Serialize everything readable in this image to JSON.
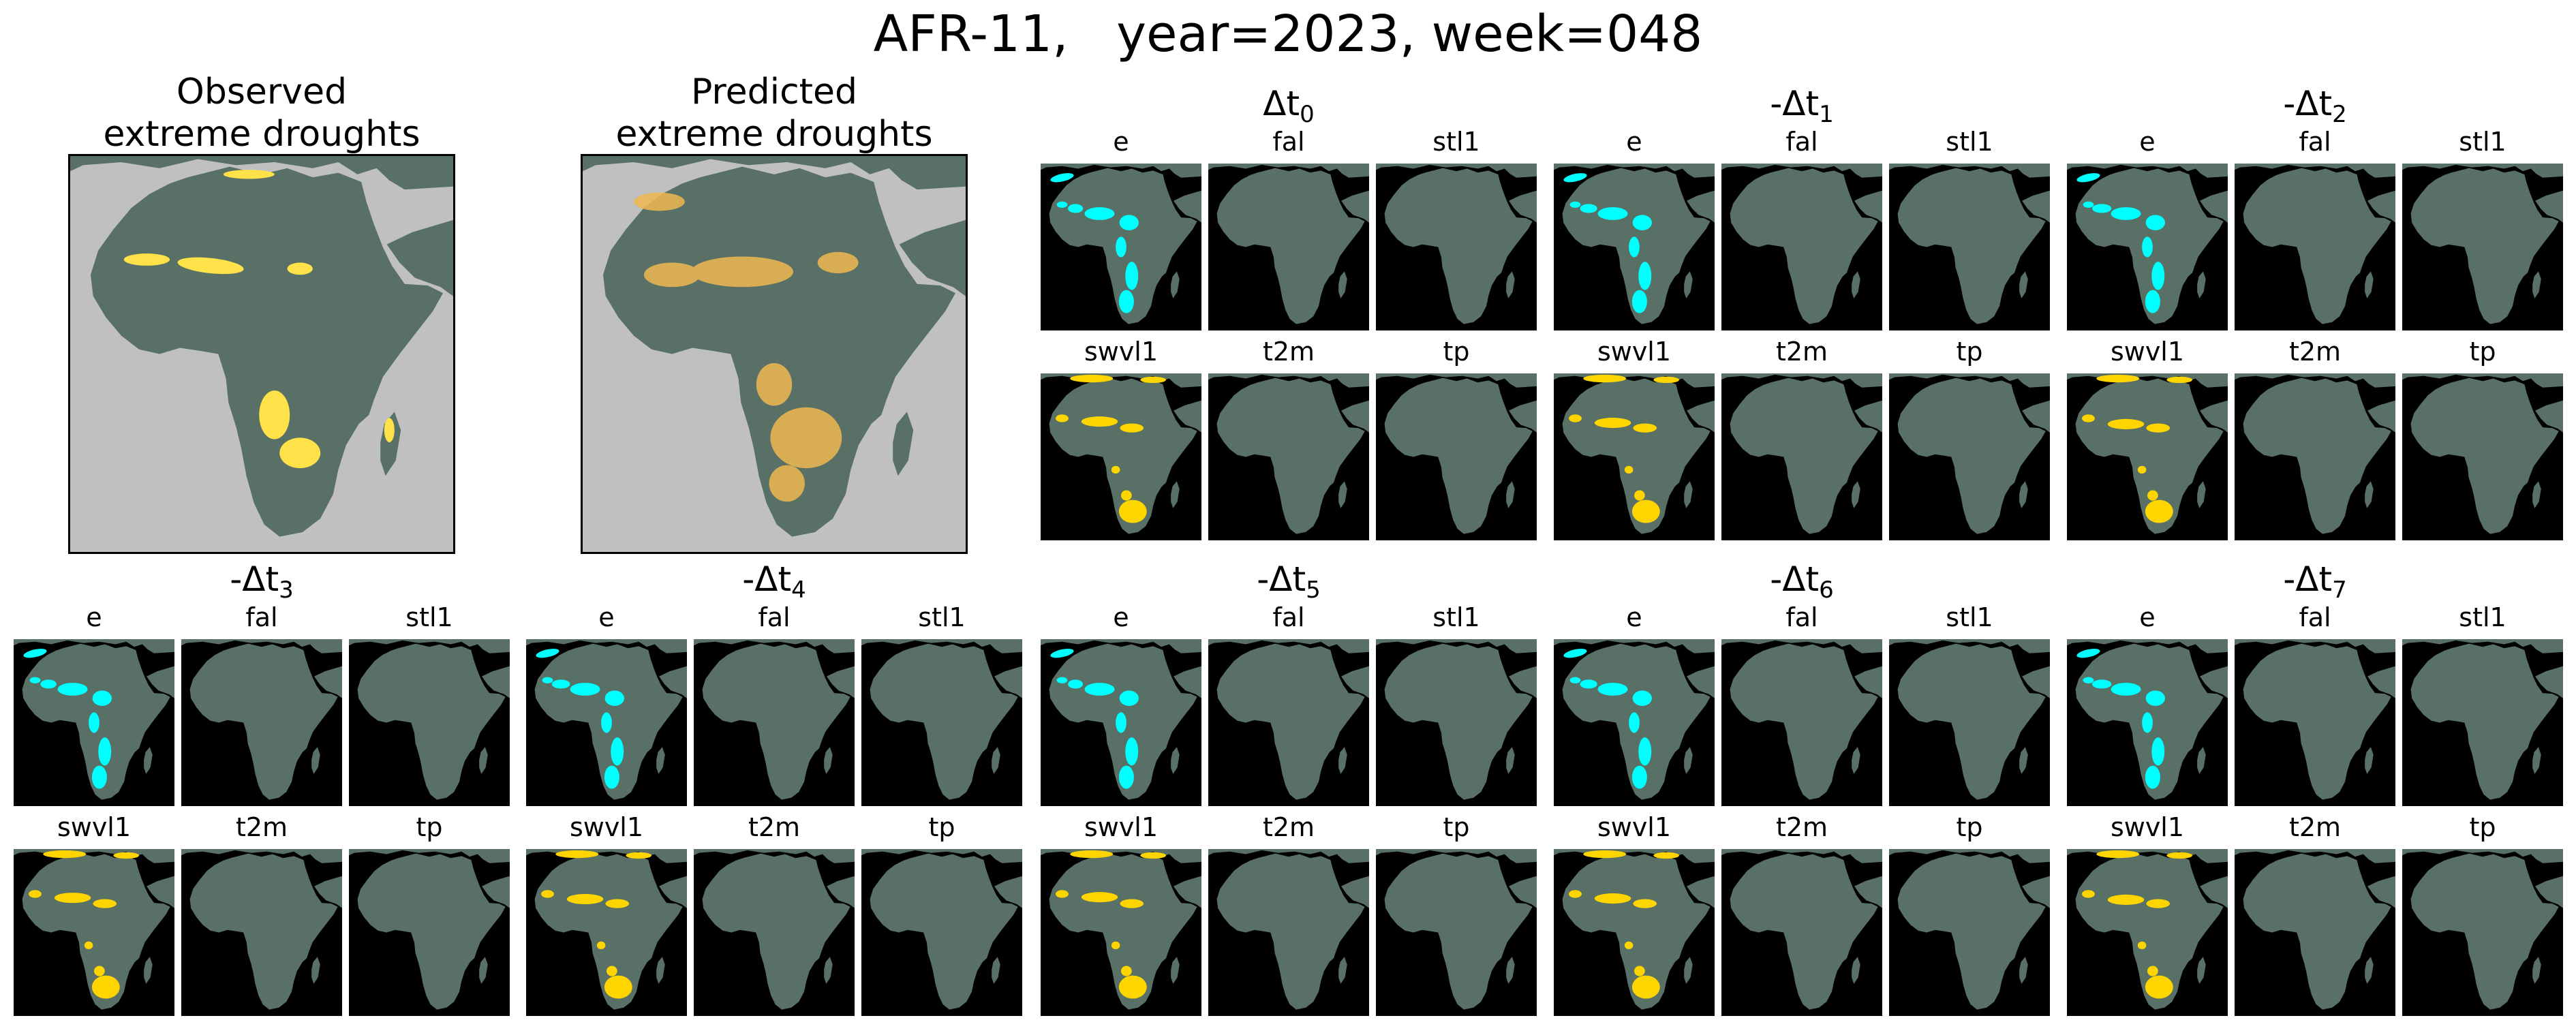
{
  "title": "AFR-11,   year=2023, week=048",
  "main_panels": [
    {
      "label": "Observed\nextreme droughts",
      "mode": "observed"
    },
    {
      "label": "Predicted\nextreme droughts",
      "mode": "predicted"
    }
  ],
  "delta_symbol": "Δt",
  "groups": [
    {
      "prefix": "",
      "sub": "0"
    },
    {
      "prefix": "-",
      "sub": "1"
    },
    {
      "prefix": "-",
      "sub": "2"
    },
    {
      "prefix": "-",
      "sub": "3"
    },
    {
      "prefix": "-",
      "sub": "4"
    },
    {
      "prefix": "-",
      "sub": "5"
    },
    {
      "prefix": "-",
      "sub": "6"
    },
    {
      "prefix": "-",
      "sub": "7"
    }
  ],
  "variables": [
    "e",
    "fal",
    "stl1",
    "swvl1",
    "t2m",
    "tp"
  ],
  "colors": {
    "land": "#587065",
    "sea_main": "#c0c0c0",
    "sea_sub": "#000000",
    "e_highlight": "#00ffff",
    "swvl1_highlight": "#ffd500",
    "drought_observed": "#ffe14a",
    "drought_predicted": "#f0b850"
  }
}
